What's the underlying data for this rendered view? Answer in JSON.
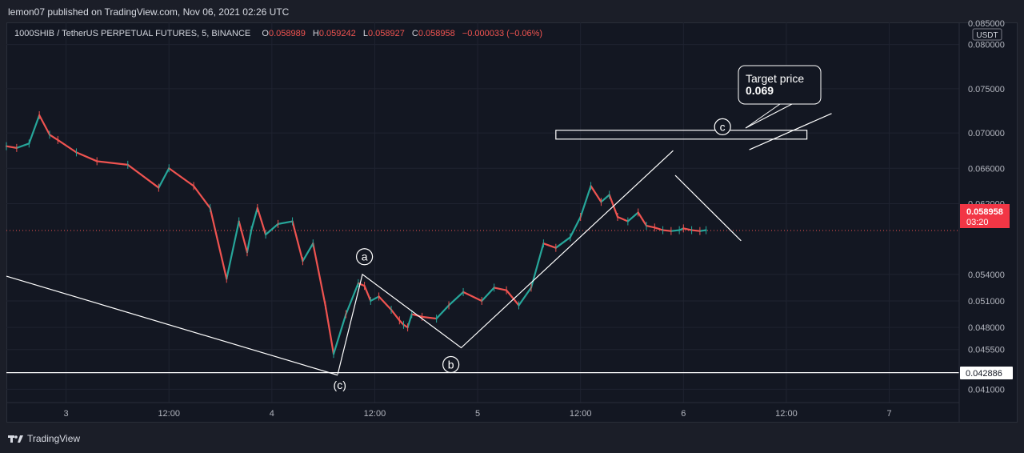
{
  "header": {
    "publisher_line": "lemon07 published on TradingView.com, Nov 06, 2021 02:26 UTC"
  },
  "legend": {
    "symbol": "1000SHIB / TetherUS PERPETUAL FUTURES, 5, BINANCE",
    "open_label": "O",
    "open": "0.058989",
    "high_label": "H",
    "high": "0.059242",
    "low_label": "L",
    "low": "0.058927",
    "close_label": "C",
    "close": "0.058958",
    "change": "−0.000033 (−0.06%)"
  },
  "price_axis": {
    "currency": "USDT",
    "top_partial": "0.085000",
    "current_price": "0.058958",
    "countdown": "03:20",
    "support_label": "0.042886"
  },
  "annotations": {
    "target_price_line1": "Target price",
    "target_price_line2": "0.069",
    "wave_a": "a",
    "wave_b": "b",
    "wave_c": "c",
    "wave_c_paren": "(c)"
  },
  "footer": {
    "brand": "TradingView"
  },
  "colors": {
    "up": "#26a69a",
    "down": "#ef5350",
    "background": "#131722",
    "price_tag": "#f23645"
  },
  "chart_data": {
    "type": "line",
    "title": "1000SHIB / TetherUS PERPETUAL FUTURES, 5, BINANCE",
    "xlabel": "",
    "ylabel": "",
    "ylim": [
      0.0395,
      0.0825
    ],
    "y_ticks": [
      0.041,
      0.0455,
      0.048,
      0.051,
      0.054,
      0.062,
      0.066,
      0.07,
      0.075,
      0.08
    ],
    "y_tick_labels": [
      "0.041000",
      "0.045500",
      "0.048000",
      "0.051000",
      "0.054000",
      "0.062000",
      "0.066000",
      "0.070000",
      "0.075000",
      "0.080000"
    ],
    "x_tick_labels": [
      "3",
      "12:00",
      "4",
      "12:00",
      "5",
      "12:00",
      "6",
      "12:00",
      "7"
    ],
    "x_tick_days": [
      3.0,
      3.5,
      4.0,
      4.5,
      5.0,
      5.5,
      6.0,
      6.5,
      7.0
    ],
    "xlim": [
      2.71,
      7.34
    ],
    "series": [
      {
        "x": [
          2.71,
          2.76,
          2.82,
          2.87,
          2.92,
          2.96,
          3.05,
          3.15,
          3.3,
          3.45,
          3.5,
          3.62,
          3.7,
          3.78,
          3.84,
          3.88,
          3.9,
          3.93,
          3.97,
          4.03,
          4.1,
          4.15,
          4.2,
          4.26,
          4.3,
          4.36,
          4.42,
          4.45,
          4.48,
          4.52,
          4.58,
          4.62,
          4.64,
          4.66,
          4.68,
          4.73,
          4.8,
          4.86,
          4.93,
          5.02,
          5.08,
          5.14,
          5.2,
          5.26,
          5.32,
          5.38,
          5.45,
          5.5,
          5.55,
          5.6,
          5.64,
          5.68,
          5.73,
          5.78,
          5.82,
          5.86,
          5.9,
          5.94,
          5.98,
          6.0,
          6.04,
          6.08,
          6.11
        ],
        "y": [
          0.0685,
          0.0683,
          0.0688,
          0.072,
          0.0698,
          0.0692,
          0.0678,
          0.0668,
          0.0664,
          0.0638,
          0.066,
          0.064,
          0.0615,
          0.0535,
          0.06,
          0.0565,
          0.059,
          0.0615,
          0.0585,
          0.0597,
          0.06,
          0.0555,
          0.0575,
          0.0505,
          0.045,
          0.0495,
          0.053,
          0.0527,
          0.051,
          0.0515,
          0.05,
          0.0488,
          0.0483,
          0.048,
          0.0495,
          0.0492,
          0.049,
          0.0505,
          0.052,
          0.051,
          0.0525,
          0.0522,
          0.0505,
          0.0525,
          0.0575,
          0.057,
          0.0582,
          0.0605,
          0.064,
          0.0622,
          0.063,
          0.0605,
          0.06,
          0.061,
          0.0595,
          0.0593,
          0.059,
          0.0589,
          0.059,
          0.0592,
          0.059,
          0.0589,
          0.059
        ]
      }
    ],
    "horizontal_lines": [
      0.042886
    ],
    "current_price": 0.058958,
    "target_zone": {
      "x_from": 5.38,
      "x_to": 6.6,
      "y_from": 0.0693,
      "y_to": 0.0703
    },
    "trend_lines": [
      {
        "points": [
          [
            2.71,
            0.0538
          ],
          [
            4.32,
            0.0426
          ]
        ]
      },
      {
        "points": [
          [
            4.32,
            0.0427
          ],
          [
            4.44,
            0.054
          ],
          [
            4.92,
            0.0457
          ],
          [
            5.95,
            0.068
          ]
        ]
      },
      {
        "points": [
          [
            5.96,
            0.0652
          ],
          [
            6.28,
            0.0578
          ]
        ]
      },
      {
        "points": [
          [
            6.32,
            0.0681
          ],
          [
            6.72,
            0.0722
          ]
        ]
      }
    ],
    "wave_labels": [
      {
        "text": "a",
        "x": 4.45,
        "y": 0.056
      },
      {
        "text": "b",
        "x": 4.87,
        "y": 0.0438
      },
      {
        "text": "c",
        "x": 6.19,
        "y": 0.0707
      },
      {
        "text": "(c)",
        "x": 4.33,
        "y": 0.0415
      }
    ],
    "grid": true,
    "legend": "top-left"
  }
}
